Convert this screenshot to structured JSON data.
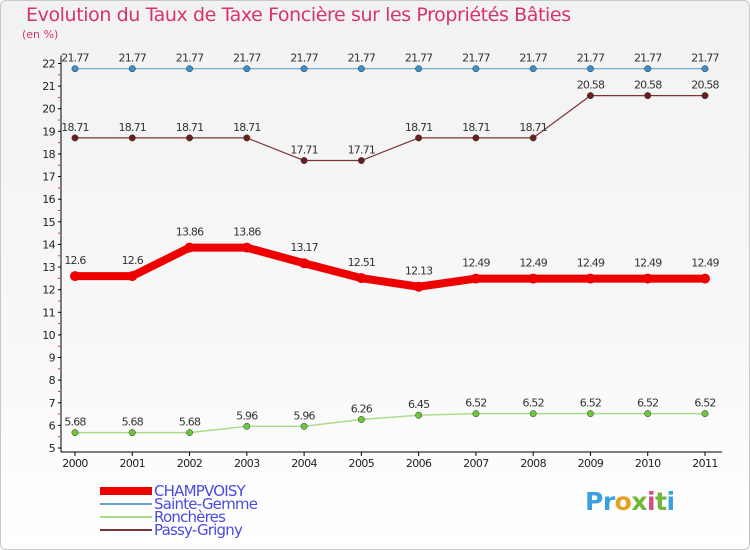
{
  "title": "Evolution du Taux de Taxe Foncière sur les Propriétés Bâties",
  "unit_label": "(en %)",
  "logo_text": "Proxiti",
  "chart_data": {
    "type": "line",
    "x": [
      "2000",
      "2001",
      "2002",
      "2003",
      "2004",
      "2005",
      "2006",
      "2007",
      "2008",
      "2009",
      "2010",
      "2011"
    ],
    "ylim": [
      5,
      22
    ],
    "yticks": [
      5,
      6,
      7,
      8,
      9,
      10,
      11,
      12,
      13,
      14,
      15,
      16,
      17,
      18,
      19,
      20,
      21,
      22
    ],
    "grid": false,
    "legend_position": "bottom-left",
    "series": [
      {
        "name": "CHAMPVOISY",
        "color": "#ee0000",
        "line_width": 8,
        "label_color": "#333333",
        "values": [
          12.6,
          12.6,
          13.86,
          13.86,
          13.17,
          12.51,
          12.13,
          12.49,
          12.49,
          12.49,
          12.49,
          12.49
        ],
        "labels": [
          "12.6",
          "12.6",
          "13.86",
          "13.86",
          "13.17",
          "12.51",
          "12.13",
          "12.49",
          "12.49",
          "12.49",
          "12.49",
          "12.49"
        ]
      },
      {
        "name": "Sainte-Gemme",
        "color": "#6ba3c8",
        "line_width": 1.2,
        "marker": "#3b8fce",
        "values": [
          21.77,
          21.77,
          21.77,
          21.77,
          21.77,
          21.77,
          21.77,
          21.77,
          21.77,
          21.77,
          21.77,
          21.77
        ],
        "labels": [
          "21.77",
          "21.77",
          "21.77",
          "21.77",
          "21.77",
          "21.77",
          "21.77",
          "21.77",
          "21.77",
          "21.77",
          "21.77",
          "21.77"
        ]
      },
      {
        "name": "Ronchères",
        "color": "#a8dc88",
        "line_width": 1.4,
        "marker": "#6cc53a",
        "values": [
          5.68,
          5.68,
          5.68,
          5.96,
          5.96,
          6.26,
          6.45,
          6.52,
          6.52,
          6.52,
          6.52,
          6.52
        ],
        "labels": [
          "5.68",
          "5.68",
          "5.68",
          "5.96",
          "5.96",
          "6.26",
          "6.45",
          "6.52",
          "6.52",
          "6.52",
          "6.52",
          "6.52"
        ]
      },
      {
        "name": "Passy-Grigny",
        "color": "#7a3434",
        "line_width": 1.2,
        "marker": "#6a1e1e",
        "values": [
          18.71,
          18.71,
          18.71,
          18.71,
          17.71,
          17.71,
          18.71,
          18.71,
          18.71,
          20.58,
          20.58,
          20.58
        ],
        "labels": [
          "18.71",
          "18.71",
          "18.71",
          "18.71",
          "17.71",
          "17.71",
          "18.71",
          "18.71",
          "18.71",
          "20.58",
          "20.58",
          "20.58"
        ]
      }
    ]
  }
}
